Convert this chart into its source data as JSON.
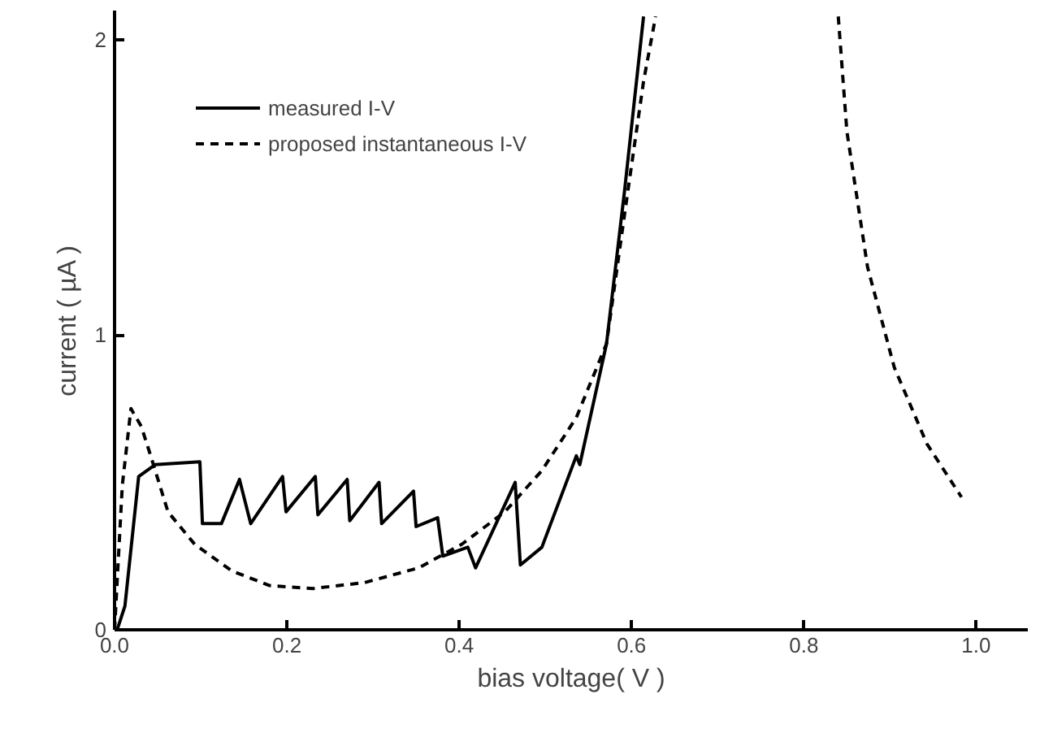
{
  "chart_data": {
    "type": "line",
    "xlabel": "bias voltage( V )",
    "ylabel": "current ( µA )",
    "xlim": [
      0,
      1.06
    ],
    "ylim": [
      0,
      2.1
    ],
    "xticks": [
      {
        "value": 0,
        "label": "0.0"
      },
      0.2,
      0.4,
      0.6,
      0.8,
      {
        "value": 1,
        "label": "1.0"
      }
    ],
    "yticks": [
      0,
      1,
      2
    ],
    "grid": false,
    "legend": "top left",
    "series": [
      {
        "name": "measured I-V",
        "color": "#000000",
        "line_style": "solid",
        "x": [
          0.003,
          0.012,
          0.028,
          0.047,
          0.099,
          0.102,
          0.124,
          0.145,
          0.158,
          0.195,
          0.199,
          0.233,
          0.236,
          0.27,
          0.273,
          0.307,
          0.31,
          0.347,
          0.35,
          0.375,
          0.381,
          0.41,
          0.419,
          0.465,
          0.471,
          0.496,
          0.536,
          0.54,
          0.571,
          0.592,
          0.614
        ],
        "values": [
          0,
          0.08,
          0.52,
          0.56,
          0.57,
          0.36,
          0.36,
          0.51,
          0.36,
          0.52,
          0.4,
          0.52,
          0.39,
          0.51,
          0.37,
          0.5,
          0.36,
          0.47,
          0.35,
          0.38,
          0.25,
          0.28,
          0.21,
          0.5,
          0.22,
          0.28,
          0.59,
          0.56,
          0.97,
          1.49,
          2.08
        ]
      },
      {
        "name": "proposed instantaneous I-V",
        "color": "#000000",
        "line_style": "dashed",
        "x": [
          0,
          0.009,
          0.019,
          0.031,
          0.043,
          0.062,
          0.093,
          0.136,
          0.18,
          0.23,
          0.29,
          0.353,
          0.403,
          0.453,
          0.496,
          0.536,
          0.571,
          0.592,
          0.614,
          0.628,
          0.73,
          0.84,
          0.85,
          0.874,
          0.905,
          0.943,
          0.983
        ],
        "values": [
          0,
          0.49,
          0.75,
          0.69,
          0.58,
          0.4,
          0.29,
          0.2,
          0.15,
          0.14,
          0.16,
          0.21,
          0.29,
          0.4,
          0.54,
          0.72,
          0.97,
          1.41,
          1.86,
          2.08,
          null,
          2.08,
          1.69,
          1.23,
          0.89,
          0.63,
          0.45
        ]
      }
    ]
  }
}
